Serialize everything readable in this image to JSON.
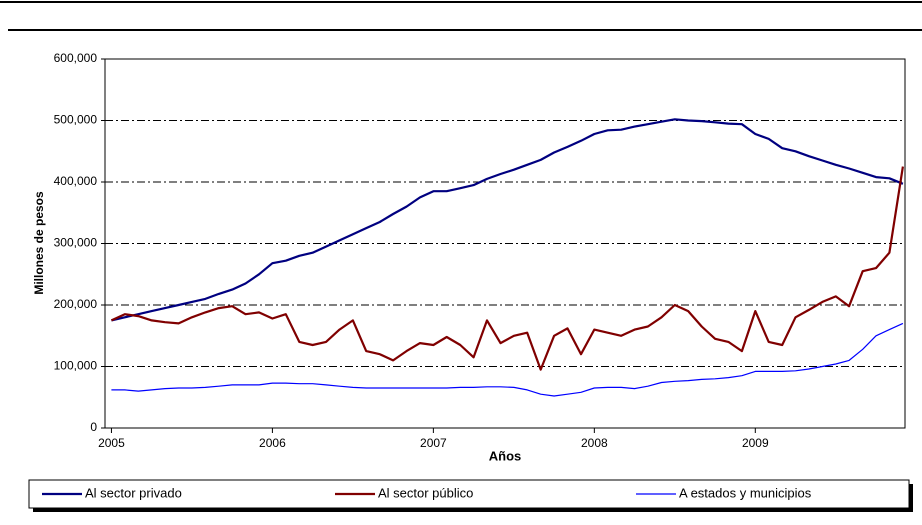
{
  "chart_data": {
    "type": "line",
    "x_label": "Años",
    "y_label": "Millones de pesos",
    "x": [
      2005,
      2005.083,
      2005.167,
      2005.25,
      2005.333,
      2005.417,
      2005.5,
      2005.583,
      2005.667,
      2005.75,
      2005.833,
      2005.917,
      2006,
      2006.083,
      2006.167,
      2006.25,
      2006.333,
      2006.417,
      2006.5,
      2006.583,
      2006.667,
      2006.75,
      2006.833,
      2006.917,
      2007,
      2007.083,
      2007.167,
      2007.25,
      2007.333,
      2007.417,
      2007.5,
      2007.583,
      2007.667,
      2007.75,
      2007.833,
      2007.917,
      2008,
      2008.083,
      2008.167,
      2008.25,
      2008.333,
      2008.417,
      2008.5,
      2008.583,
      2008.667,
      2008.75,
      2008.833,
      2008.917,
      2009,
      2009.083,
      2009.167,
      2009.25,
      2009.333,
      2009.417,
      2009.5,
      2009.583,
      2009.667,
      2009.75,
      2009.833,
      2009.917
    ],
    "series": [
      {
        "name": "Al sector privado",
        "color": "#000080",
        "width": 2.2,
        "values": [
          175000,
          180000,
          185000,
          190000,
          195000,
          200000,
          205000,
          210000,
          218000,
          225000,
          235000,
          250000,
          268000,
          272000,
          280000,
          285000,
          295000,
          305000,
          315000,
          325000,
          335000,
          348000,
          360000,
          375000,
          385000,
          385000,
          390000,
          395000,
          405000,
          413000,
          420000,
          428000,
          436000,
          448000,
          457000,
          467000,
          478000,
          484000,
          485000,
          490000,
          494000,
          498000,
          502000,
          500000,
          499000,
          497000,
          495000,
          494000,
          478000,
          470000,
          455000,
          450000,
          442000,
          435000,
          428000,
          422000,
          415000,
          408000,
          406000,
          397000
        ]
      },
      {
        "name": "Al sector público",
        "color": "#800000",
        "width": 2.2,
        "values": [
          175000,
          185000,
          182000,
          175000,
          172000,
          170000,
          180000,
          188000,
          195000,
          198000,
          185000,
          188000,
          178000,
          185000,
          140000,
          135000,
          140000,
          160000,
          175000,
          125000,
          120000,
          110000,
          125000,
          138000,
          135000,
          148000,
          135000,
          115000,
          175000,
          138000,
          150000,
          155000,
          95000,
          150000,
          162000,
          120000,
          160000,
          155000,
          150000,
          160000,
          165000,
          180000,
          200000,
          190000,
          165000,
          145000,
          140000,
          125000,
          190000,
          140000,
          135000,
          180000,
          192000,
          205000,
          214000,
          198000,
          255000,
          260000,
          285000,
          425000
        ]
      },
      {
        "name": "A estados y municipios",
        "color": "#0000ff",
        "width": 1.2,
        "values": [
          62000,
          62000,
          60000,
          62000,
          64000,
          65000,
          65000,
          66000,
          68000,
          70000,
          70000,
          70000,
          73000,
          73000,
          72000,
          72000,
          70000,
          68000,
          66000,
          65000,
          65000,
          65000,
          65000,
          65000,
          65000,
          65000,
          66000,
          66000,
          67000,
          67000,
          66000,
          62000,
          55000,
          52000,
          55000,
          58000,
          65000,
          66000,
          66000,
          64000,
          68000,
          74000,
          76000,
          77000,
          79000,
          80000,
          82000,
          85000,
          92000,
          92000,
          92000,
          93000,
          96000,
          100000,
          104000,
          110000,
          128000,
          150000,
          160000,
          170000
        ]
      }
    ],
    "xlim": [
      2004.96,
      2009.93
    ],
    "xticks": [
      2005,
      2006,
      2007,
      2008,
      2009
    ],
    "ylim": [
      0,
      600000
    ],
    "yticks": [
      0,
      {
        "value": 100000,
        "label": "100,000"
      },
      {
        "value": 200000,
        "label": "200,000"
      },
      {
        "value": 300000,
        "label": "300,000"
      },
      {
        "value": 400000,
        "label": "400,000"
      },
      {
        "value": 500000,
        "label": "500,000"
      },
      {
        "value": 600000,
        "label": "600,000"
      }
    ],
    "grid": true,
    "legend": "bottom"
  }
}
